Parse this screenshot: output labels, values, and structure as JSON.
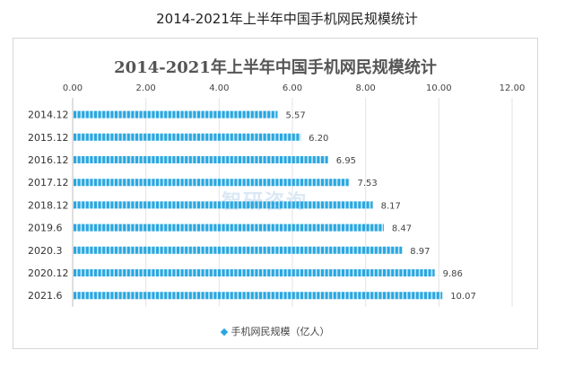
{
  "page": {
    "title": "2014-2021年上半年中国手机网民规模统计"
  },
  "watermark": {
    "text": "智研咨询"
  },
  "chart_data": {
    "type": "bar",
    "orientation": "horizontal",
    "title": "2014-2021年上半年中国手机网民规模统计",
    "categories": [
      "2014.12",
      "2015.12",
      "2016.12",
      "2017.12",
      "2018.12",
      "2019.6",
      "2020.3",
      "2020.12",
      "2021.6"
    ],
    "series": [
      {
        "name": "手机网民规模（亿人）",
        "values": [
          5.57,
          6.2,
          6.95,
          7.53,
          8.17,
          8.47,
          8.97,
          9.86,
          10.07
        ],
        "color": "#2aa7e0"
      }
    ],
    "value_labels": [
      "5.57",
      "6.20",
      "6.95",
      "7.53",
      "8.17",
      "8.47",
      "8.97",
      "9.86",
      "10.07"
    ],
    "axis_ticks": [
      "0.00",
      "2.00",
      "4.00",
      "6.00",
      "8.00",
      "10.00",
      "12.00"
    ],
    "xlim": [
      0,
      12
    ],
    "grid": true,
    "legend_position": "bottom"
  }
}
